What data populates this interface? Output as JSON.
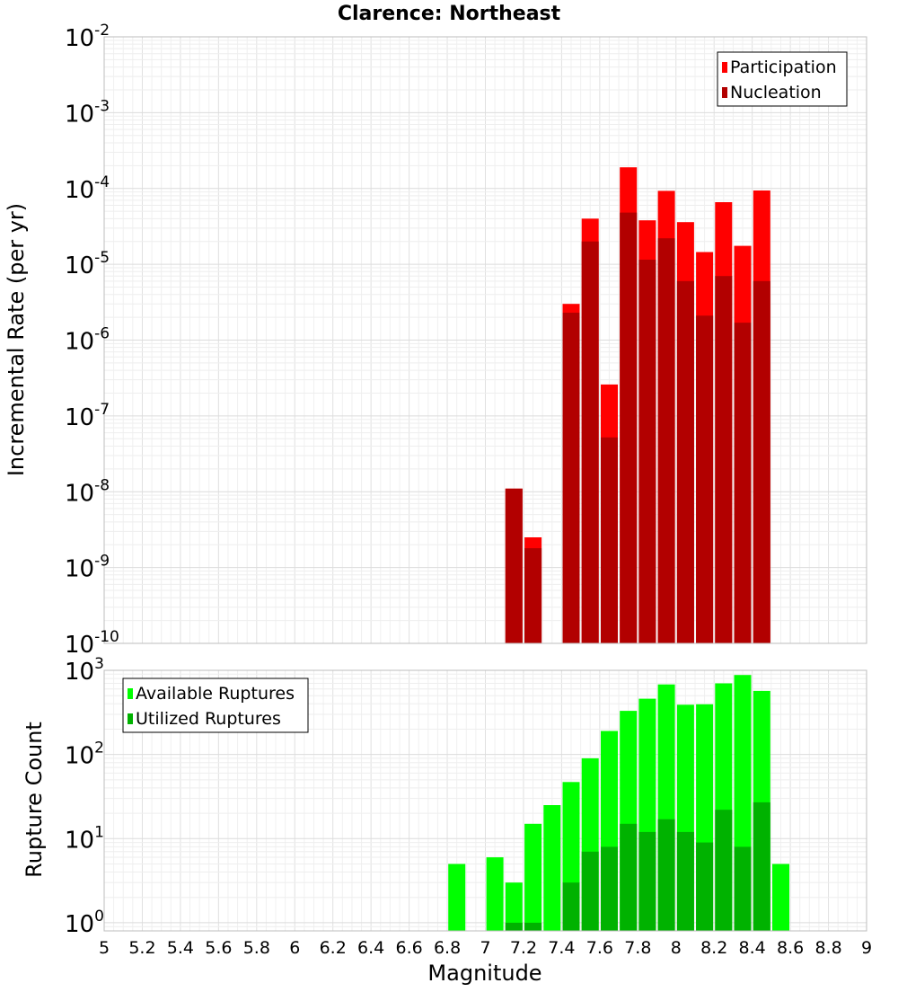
{
  "chart_data": [
    {
      "type": "bar",
      "title": "Clarence: Northeast",
      "ylabel": "Incremental Rate (per yr)",
      "yscale": "log",
      "ylim": [
        1e-10,
        0.01
      ],
      "xlim": [
        5,
        9
      ],
      "y_ticks": [
        {
          "base": "10",
          "exp": "-10"
        },
        {
          "base": "10",
          "exp": "-9"
        },
        {
          "base": "10",
          "exp": "-8"
        },
        {
          "base": "10",
          "exp": "-7"
        },
        {
          "base": "10",
          "exp": "-6"
        },
        {
          "base": "10",
          "exp": "-5"
        },
        {
          "base": "10",
          "exp": "-4"
        },
        {
          "base": "10",
          "exp": "-3"
        },
        {
          "base": "10",
          "exp": "-2"
        }
      ],
      "grid": true,
      "legend_position": "top-right",
      "series": [
        {
          "name": "Participation",
          "color": "#ff0000",
          "x": [
            7.15,
            7.25,
            7.45,
            7.55,
            7.65,
            7.75,
            7.85,
            7.95,
            8.05,
            8.15,
            8.25,
            8.35,
            8.45
          ],
          "values": [
            1.1e-08,
            2.5e-09,
            3e-06,
            4e-05,
            2.6e-07,
            0.00019,
            3.8e-05,
            9.3e-05,
            3.6e-05,
            1.45e-05,
            6.6e-05,
            1.75e-05,
            9.4e-05
          ]
        },
        {
          "name": "Nucleation",
          "color": "#b20000",
          "x": [
            7.15,
            7.25,
            7.45,
            7.55,
            7.65,
            7.75,
            7.85,
            7.95,
            8.05,
            8.15,
            8.25,
            8.35,
            8.45
          ],
          "values": [
            1.1e-08,
            1.8e-09,
            2.3e-06,
            2e-05,
            5.2e-08,
            4.8e-05,
            1.15e-05,
            2.2e-05,
            6e-06,
            2.1e-06,
            7e-06,
            1.7e-06,
            6e-06
          ]
        }
      ]
    },
    {
      "type": "bar",
      "title": "",
      "ylabel": "Rupture Count",
      "xlabel": "Magnitude",
      "yscale": "log",
      "ylim": [
        0.8,
        1000
      ],
      "xlim": [
        5,
        9
      ],
      "y_ticks": [
        {
          "base": "10",
          "exp": "0",
          "value": 1
        },
        {
          "base": "10",
          "exp": "1",
          "value": 10
        },
        {
          "base": "10",
          "exp": "2",
          "value": 100
        },
        {
          "base": "10",
          "exp": "3",
          "value": 1000
        }
      ],
      "x_ticks": [
        "5",
        "5.2",
        "5.4",
        "5.6",
        "5.8",
        "6",
        "6.2",
        "6.4",
        "6.6",
        "6.8",
        "7",
        "7.2",
        "7.4",
        "7.6",
        "7.8",
        "8",
        "8.2",
        "8.4",
        "8.6",
        "8.8",
        "9"
      ],
      "grid": true,
      "legend_position": "top-left",
      "series": [
        {
          "name": "Available Ruptures",
          "color": "#00ff00",
          "x": [
            6.85,
            7.05,
            7.15,
            7.25,
            7.35,
            7.45,
            7.55,
            7.65,
            7.75,
            7.85,
            7.95,
            8.05,
            8.15,
            8.25,
            8.35,
            8.45,
            8.55
          ],
          "values": [
            5,
            6,
            3,
            15,
            25,
            47,
            90,
            190,
            330,
            460,
            680,
            390,
            395,
            700,
            880,
            570,
            5
          ]
        },
        {
          "name": "Utilized Ruptures",
          "color": "#00b200",
          "x": [
            6.85,
            7.05,
            7.15,
            7.25,
            7.35,
            7.45,
            7.55,
            7.65,
            7.75,
            7.85,
            7.95,
            8.05,
            8.15,
            8.25,
            8.35,
            8.45,
            8.55
          ],
          "values": [
            0,
            0,
            1,
            1,
            0,
            3,
            7,
            8,
            15,
            12,
            17,
            12,
            9,
            22,
            8,
            27,
            0
          ]
        }
      ]
    }
  ]
}
